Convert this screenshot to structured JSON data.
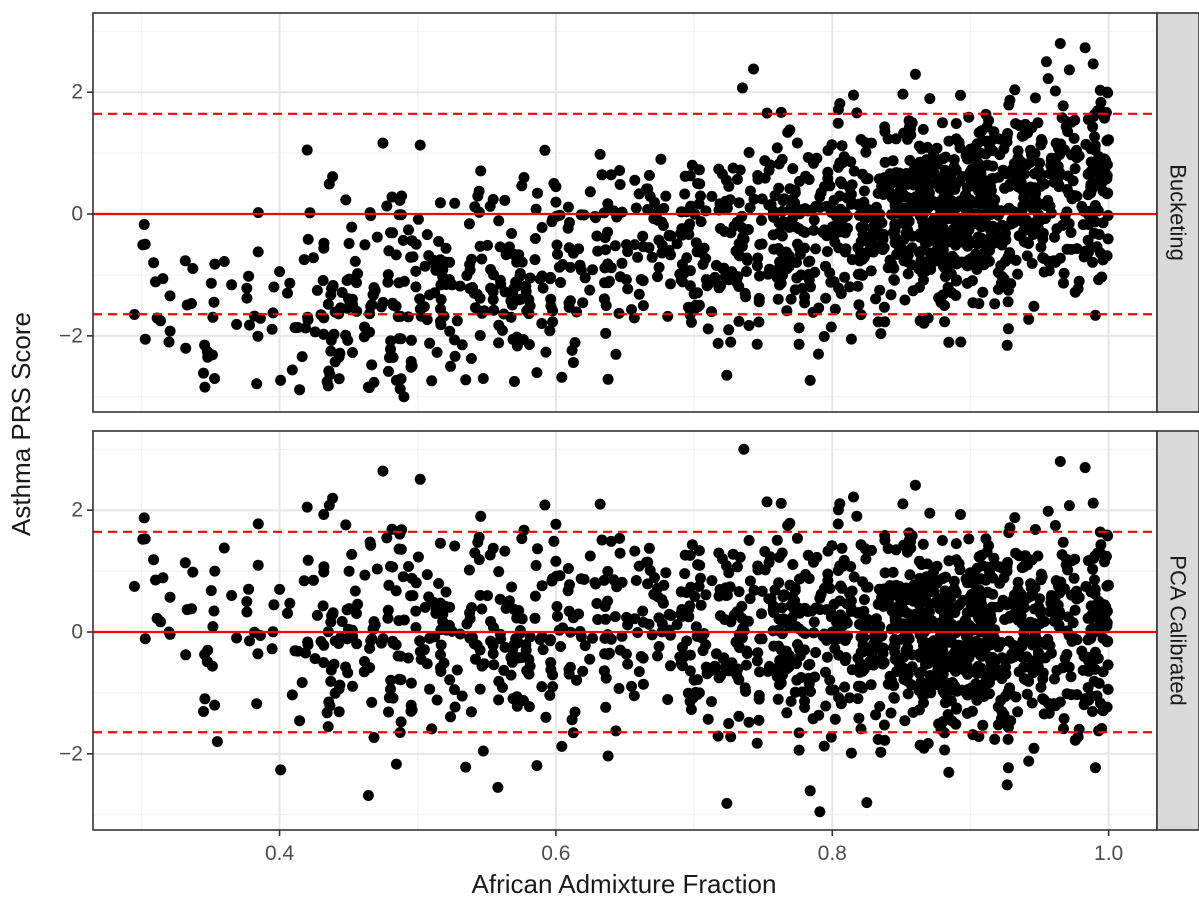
{
  "chart_data": {
    "type": "scatter",
    "xlabel": "African Admixture Fraction",
    "ylabel": "Asthma PRS Score",
    "xlim": [
      0.265,
      1.035
    ],
    "x_ticks": [
      0.4,
      0.6,
      0.8,
      1.0
    ],
    "x_tick_labels": [
      "0.4",
      "0.6",
      "0.8",
      "1.0"
    ],
    "grid": true,
    "point_color": "#000000",
    "line_color": "#ff0000",
    "strip_color": "#d9d9d9",
    "facets": [
      {
        "strip_label": "Bucketing",
        "ylim": [
          -3.25,
          3.3
        ],
        "y_ticks": [
          -2,
          0,
          2
        ],
        "y_tick_labels": [
          "−2",
          "0",
          "2"
        ],
        "hlines": {
          "solid": 0,
          "dashed": [
            -1.645,
            1.645
          ]
        },
        "highlighted_points": [
          {
            "x": 0.295,
            "y": -1.65
          },
          {
            "x": 0.32,
            "y": -2.1
          },
          {
            "x": 0.348,
            "y": -2.35
          },
          {
            "x": 0.353,
            "y": -2.7
          },
          {
            "x": 0.36,
            "y": -0.78
          },
          {
            "x": 0.42,
            "y": 1.05
          },
          {
            "x": 0.422,
            "y": 0.02
          },
          {
            "x": 0.49,
            "y": -3.0
          },
          {
            "x": 0.465,
            "y": -2.85
          },
          {
            "x": 0.57,
            "y": -2.75
          },
          {
            "x": 0.6,
            "y": 0.45
          },
          {
            "x": 0.632,
            "y": 0.98
          },
          {
            "x": 0.676,
            "y": 0.9
          },
          {
            "x": 0.735,
            "y": 2.07
          },
          {
            "x": 0.743,
            "y": 2.38
          },
          {
            "x": 0.79,
            "y": -2.3
          },
          {
            "x": 0.893,
            "y": -2.1
          },
          {
            "x": 0.965,
            "y": 2.8
          },
          {
            "x": 0.983,
            "y": 2.73
          },
          {
            "x": 0.955,
            "y": 2.5
          }
        ]
      },
      {
        "strip_label": "PCA Calibrated",
        "ylim": [
          -3.25,
          3.3
        ],
        "y_ticks": [
          -2,
          0,
          2
        ],
        "y_tick_labels": [
          "−2",
          "0",
          "2"
        ],
        "hlines": {
          "solid": 0,
          "dashed": [
            -1.645,
            1.645
          ]
        },
        "highlighted_points": [
          {
            "x": 0.295,
            "y": 0.75
          },
          {
            "x": 0.32,
            "y": 0.0
          },
          {
            "x": 0.348,
            "y": -0.3
          },
          {
            "x": 0.353,
            "y": -1.2
          },
          {
            "x": 0.355,
            "y": -1.8
          },
          {
            "x": 0.36,
            "y": 1.38
          },
          {
            "x": 0.42,
            "y": 2.05
          },
          {
            "x": 0.432,
            "y": 1.93
          },
          {
            "x": 0.558,
            "y": -2.55
          },
          {
            "x": 0.6,
            "y": 1.77
          },
          {
            "x": 0.632,
            "y": 2.1
          },
          {
            "x": 0.736,
            "y": 3.0
          },
          {
            "x": 0.791,
            "y": -2.95
          },
          {
            "x": 0.825,
            "y": -2.8
          },
          {
            "x": 0.965,
            "y": 2.8
          },
          {
            "x": 0.983,
            "y": 2.7
          }
        ]
      }
    ],
    "point_count_estimate": 1500
  }
}
